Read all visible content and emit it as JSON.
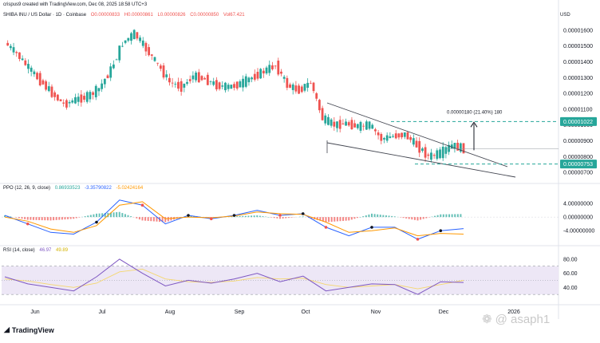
{
  "header": {
    "text": "crispus9 created with TradingView.com, Dec 08, 2025 18:58 UTC+3"
  },
  "main_legend": {
    "title": "SHIBA INU / US Dollar · 1D · Coinbase",
    "o": "O0.00000833",
    "h": "H0.00000861",
    "l": "L0.00000826",
    "c": "C0.00000850",
    "vol": "Vol67.421"
  },
  "ppo_legend": {
    "title": "PPO (12, 26, 9, close)",
    "v1": "0.86933523",
    "v2": "-3.35790822",
    "v3": "-5.02424164"
  },
  "rsi_legend": {
    "title": "RSI (14, close)",
    "v1": "46.97",
    "v2": "49.89"
  },
  "currency": "USD",
  "price_axis": {
    "ticks": [
      "0.00001600",
      "0.00001500",
      "0.00001400",
      "0.00001300",
      "0.00001200",
      "0.00001100",
      "0.00001000",
      "0.00000900",
      "0.00000800",
      "0.00000700"
    ],
    "badge_upper": "0.00001022",
    "badge_lower": "0.00000753"
  },
  "measure_label": "0.00000180 (21.40%) 180",
  "ppo_axis": {
    "ticks": [
      "4.00000000",
      "0.00000000",
      "-4.00000000"
    ]
  },
  "rsi_axis": {
    "ticks": [
      "80.00",
      "60.00",
      "40.00"
    ]
  },
  "time_axis": {
    "ticks": [
      "Jun",
      "Jul",
      "Aug",
      "Sep",
      "Oct",
      "Nov",
      "Dec",
      "2026"
    ]
  },
  "brand": "TradingView",
  "watermark": "@ asaph1",
  "colors": {
    "up": "#26a69a",
    "down": "#ef5350",
    "ppo_line": "#2962ff",
    "signal_line": "#ff9800",
    "rsi": "#7e57c2",
    "rsi_ma": "#f5d76e",
    "rsi_band": "#ede7f6",
    "dash": "#26a69a"
  },
  "chart_data": [
    {
      "type": "candlestick",
      "name": "SHIBA INU / US Dollar",
      "ylim": [
        6.7e-06,
        1.65e-05
      ],
      "x": [
        "May 26",
        "May 31",
        "Jun 05",
        "Jun 10",
        "Jun 15",
        "Jun 20",
        "Jun 25",
        "Jun 30",
        "Jul 05",
        "Jul 10",
        "Jul 15",
        "Jul 20",
        "Jul 25",
        "Jul 30",
        "Aug 04",
        "Aug 09",
        "Aug 14",
        "Aug 19",
        "Aug 24",
        "Aug 29",
        "Sep 03",
        "Sep 08",
        "Sep 13",
        "Sep 18",
        "Sep 23",
        "Sep 28",
        "Oct 03",
        "Oct 08",
        "Oct 13",
        "Oct 18",
        "Oct 23",
        "Oct 28",
        "Nov 02",
        "Nov 07",
        "Nov 12",
        "Nov 17",
        "Nov 22",
        "Nov 27",
        "Dec 02",
        "Dec 07"
      ],
      "close": [
        1.52e-05,
        1.45e-05,
        1.36e-05,
        1.28e-05,
        1.2e-05,
        1.13e-05,
        1.16e-05,
        1.18e-05,
        1.23e-05,
        1.35e-05,
        1.52e-05,
        1.58e-05,
        1.48e-05,
        1.38e-05,
        1.27e-05,
        1.24e-05,
        1.31e-05,
        1.29e-05,
        1.25e-05,
        1.24e-05,
        1.26e-05,
        1.3e-05,
        1.34e-05,
        1.38e-05,
        1.25e-05,
        1.22e-05,
        1.27e-05,
        1.04e-05,
        1e-05,
        1.01e-05,
        9.9e-06,
        1e-05,
        9.1e-06,
        9.3e-06,
        9.4e-06,
        8.7e-06,
        8e-06,
        8.2e-06,
        8.7e-06,
        8.5e-06
      ]
    },
    {
      "type": "line",
      "name": "PPO",
      "ylim": [
        -7,
        8
      ],
      "x": [
        "May 26",
        "Jun 05",
        "Jun 15",
        "Jun 25",
        "Jul 05",
        "Jul 15",
        "Jul 25",
        "Aug 04",
        "Aug 14",
        "Aug 24",
        "Sep 03",
        "Sep 13",
        "Sep 23",
        "Oct 03",
        "Oct 13",
        "Oct 23",
        "Nov 02",
        "Nov 12",
        "Nov 22",
        "Dec 02",
        "Dec 07"
      ],
      "series": [
        {
          "values": [
            0.5,
            -2.0,
            -4.5,
            -5.0,
            -1.5,
            5.0,
            3.5,
            -2.0,
            0.5,
            -0.5,
            0.5,
            2.0,
            0.5,
            1.0,
            -3.0,
            -5.5,
            -3.0,
            -3.0,
            -6.5,
            -4.0,
            -3.4
          ]
        },
        {
          "values": [
            0.0,
            -1.2,
            -3.5,
            -4.5,
            -2.5,
            3.5,
            4.5,
            -0.5,
            0.0,
            -0.2,
            0.3,
            1.5,
            1.0,
            0.8,
            -1.5,
            -4.5,
            -4.0,
            -3.2,
            -5.5,
            -4.8,
            -5.0
          ]
        }
      ],
      "histogram": [
        0.5,
        -0.8,
        -1.0,
        -0.5,
        1.0,
        1.5,
        -1.0,
        -1.5,
        0.5,
        -0.3,
        0.2,
        0.5,
        -0.5,
        0.2,
        -1.5,
        -1.0,
        1.0,
        0.2,
        -1.0,
        0.8,
        0.9
      ]
    },
    {
      "type": "line",
      "name": "RSI",
      "ylim": [
        20,
        90
      ],
      "x": [
        "May 26",
        "Jun 05",
        "Jun 15",
        "Jun 25",
        "Jul 05",
        "Jul 15",
        "Jul 25",
        "Aug 04",
        "Aug 14",
        "Aug 24",
        "Sep 03",
        "Sep 13",
        "Sep 23",
        "Oct 03",
        "Oct 13",
        "Oct 23",
        "Nov 02",
        "Nov 12",
        "Nov 22",
        "Dec 02",
        "Dec 07"
      ],
      "series": [
        {
          "values": [
            55,
            45,
            40,
            35,
            55,
            80,
            60,
            42,
            50,
            46,
            52,
            60,
            48,
            56,
            35,
            40,
            45,
            44,
            30,
            48,
            47
          ]
        },
        {
          "values": [
            52,
            49,
            44,
            40,
            46,
            62,
            66,
            52,
            48,
            47,
            49,
            54,
            52,
            53,
            44,
            40,
            42,
            44,
            38,
            44,
            49.9
          ]
        }
      ]
    }
  ]
}
